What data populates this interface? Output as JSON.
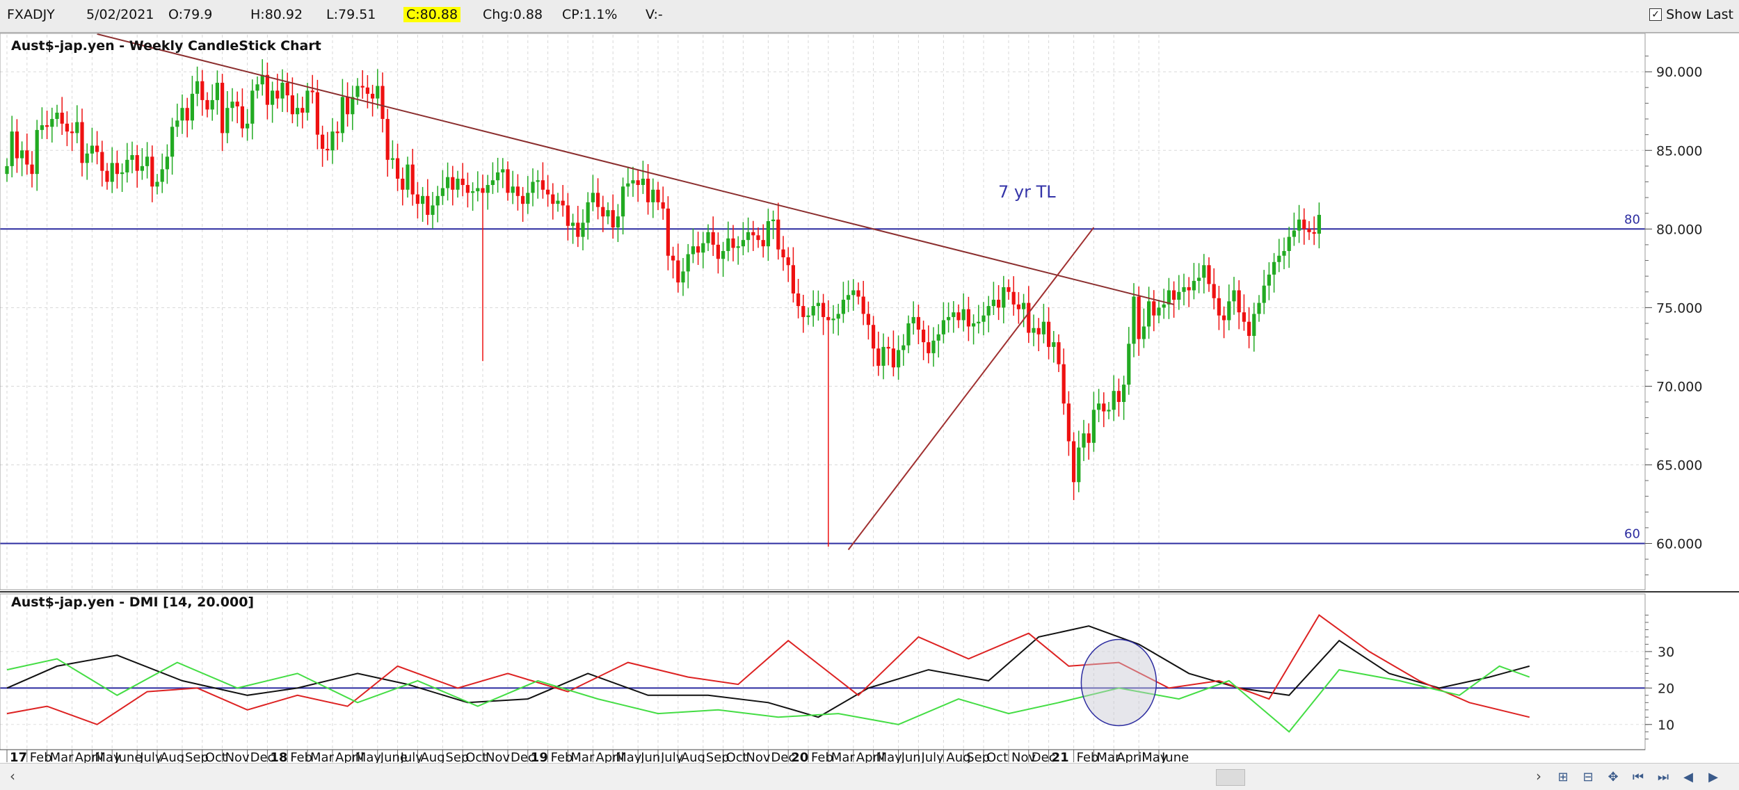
{
  "topbar": {
    "symbol": "FXADJY",
    "date": "5/02/2021",
    "open": "O:79.9",
    "high": "H:80.92",
    "low": "L:79.51",
    "close": "C:80.88",
    "change": "Chg:0.88",
    "change_pct": "CP:1.1%",
    "volume": "V:-",
    "show_last_label": "Show Last",
    "show_last_checked": true,
    "close_highlight_color": "#ffff00"
  },
  "chart_data": [
    {
      "type": "candlestick",
      "title": "Aust$-jap.yen - Weekly CandleStick Chart",
      "ylim": [
        57.5,
        92
      ],
      "yticks": [
        "90.000",
        "85.000",
        "80.000",
        "75.000",
        "70.000",
        "65.000",
        "60.000"
      ],
      "ytick_values": [
        90,
        85,
        80,
        75,
        70,
        65,
        60
      ],
      "grid": true,
      "up_color": "#22aa22",
      "down_color": "#ee1111",
      "horizontal_lines": [
        {
          "label": "80",
          "value": 80,
          "color": "#2c2ca0"
        },
        {
          "label": "60",
          "value": 60,
          "color": "#2c2ca0"
        }
      ],
      "trendlines": [
        {
          "label": "7 yr TL",
          "start": {
            "week": 18,
            "value": 92.4
          },
          "end": {
            "week": 233,
            "value": 75.2
          },
          "color": "#8b2e2e"
        },
        {
          "label": "",
          "start": {
            "week": 168,
            "value": 59.6
          },
          "end": {
            "week": 217,
            "value": 80.1
          },
          "color": "#a03030"
        }
      ],
      "start_week_index": 0,
      "closes": [
        84.0,
        86.2,
        84.5,
        85.0,
        84.1,
        83.5,
        86.3,
        86.6,
        86.5,
        87.0,
        87.4,
        86.7,
        86.2,
        86.1,
        86.8,
        84.2,
        84.8,
        85.3,
        84.9,
        83.7,
        83.0,
        84.2,
        83.5,
        83.6,
        84.4,
        84.7,
        83.7,
        84.0,
        84.6,
        82.7,
        83.0,
        83.8,
        84.6,
        86.5,
        86.9,
        87.7,
        86.9,
        88.6,
        89.4,
        88.2,
        87.6,
        88.2,
        89.3,
        86.1,
        87.7,
        88.1,
        87.8,
        86.4,
        86.7,
        88.8,
        89.2,
        89.8,
        87.9,
        88.8,
        88.3,
        89.3,
        88.5,
        87.3,
        87.7,
        87.4,
        88.8,
        88.7,
        86.0,
        85.1,
        85.0,
        86.2,
        86.1,
        88.4,
        87.3,
        88.4,
        89.1,
        89.0,
        88.6,
        88.3,
        89.1,
        87.0,
        84.4,
        84.5,
        83.2,
        82.5,
        84.1,
        82.2,
        81.6,
        82.1,
        80.9,
        81.5,
        82.1,
        82.6,
        83.3,
        82.5,
        83.2,
        82.8,
        82.3,
        82.4,
        82.6,
        82.3,
        82.8,
        83.1,
        83.6,
        83.8,
        82.3,
        82.7,
        82.1,
        81.6,
        82.3,
        83.0,
        83.1,
        82.5,
        82.2,
        81.6,
        81.8,
        81.5,
        80.2,
        80.4,
        79.5,
        80.4,
        81.7,
        82.3,
        81.4,
        80.8,
        81.2,
        80.1,
        80.8,
        82.7,
        82.9,
        83.1,
        82.8,
        83.2,
        81.7,
        82.5,
        81.7,
        81.3,
        78.3,
        78.0,
        76.6,
        77.3,
        78.4,
        78.9,
        78.5,
        79.1,
        79.8,
        79.0,
        78.1,
        78.6,
        79.4,
        78.8,
        78.9,
        79.3,
        79.8,
        79.6,
        79.3,
        78.9,
        80.5,
        80.6,
        78.7,
        78.2,
        77.7,
        75.9,
        75.1,
        74.4,
        74.5,
        75.1,
        75.3,
        74.4,
        74.2,
        74.3,
        74.6,
        75.5,
        75.8,
        76.1,
        75.7,
        74.6,
        73.9,
        72.4,
        71.3,
        72.5,
        72.4,
        71.2,
        72.3,
        72.6,
        74.0,
        74.4,
        73.6,
        72.8,
        72.1,
        72.9,
        73.3,
        74.2,
        74.4,
        74.7,
        74.2,
        74.9,
        73.8,
        74.0,
        74.1,
        74.5,
        75.1,
        75.5,
        75.0,
        76.3,
        76.0,
        75.2,
        74.9,
        75.3,
        73.4,
        73.7,
        73.3,
        74.1,
        72.5,
        72.8,
        71.4,
        68.9,
        66.5,
        63.9,
        66.1,
        67.0,
        66.4,
        68.5,
        68.9,
        68.4,
        68.5,
        69.7,
        69.0,
        70.1,
        72.7,
        75.7,
        73.0,
        73.8,
        75.4,
        74.5,
        75.0,
        75.2,
        76.1,
        75.5,
        76.0,
        76.3,
        76.1,
        76.7,
        76.9,
        77.7,
        76.5,
        75.6,
        74.5,
        74.2,
        75.4,
        76.1,
        74.7,
        74.1,
        73.2,
        74.6,
        75.3,
        76.4,
        77.1,
        77.9,
        78.3,
        78.6,
        79.5,
        79.9,
        80.6,
        80.0,
        79.8,
        79.7,
        80.9
      ],
      "note_weeks": "each candle = one week starting first week of Jan 2017"
    },
    {
      "type": "line",
      "title": "Aust$-jap.yen - DMI [14, 20.000]",
      "ylim": [
        5,
        42
      ],
      "yticks": [
        "30",
        "20",
        "10"
      ],
      "ytick_values": [
        30,
        20,
        10
      ],
      "horizontal_lines": [
        {
          "value": 20,
          "color": "#2c2ca0"
        }
      ],
      "highlight_circle": {
        "center_week": 222,
        "center_value": 21.5,
        "color": "#2c2ca0"
      },
      "series": [
        {
          "name": "",
          "color": "#111111",
          "values_by_week": [
            [
              0,
              20
            ],
            [
              10,
              26
            ],
            [
              22,
              29
            ],
            [
              35,
              22
            ],
            [
              48,
              18
            ],
            [
              58,
              20
            ],
            [
              70,
              24
            ],
            [
              80,
              21
            ],
            [
              92,
              16
            ],
            [
              104,
              17
            ],
            [
              116,
              24
            ],
            [
              128,
              18
            ],
            [
              140,
              18
            ],
            [
              152,
              16
            ],
            [
              162,
              12
            ],
            [
              172,
              20
            ],
            [
              184,
              25
            ],
            [
              196,
              22
            ],
            [
              206,
              34
            ],
            [
              216,
              37
            ],
            [
              226,
              32
            ],
            [
              236,
              24
            ],
            [
              246,
              20
            ],
            [
              256,
              18
            ],
            [
              266,
              33
            ],
            [
              276,
              24
            ],
            [
              286,
              20
            ],
            [
              296,
              23
            ],
            [
              304,
              26
            ]
          ]
        },
        {
          "name": "",
          "color": "#dd2222",
          "values_by_week": [
            [
              0,
              13
            ],
            [
              8,
              15
            ],
            [
              18,
              10
            ],
            [
              28,
              19
            ],
            [
              38,
              20
            ],
            [
              48,
              14
            ],
            [
              58,
              18
            ],
            [
              68,
              15
            ],
            [
              78,
              26
            ],
            [
              90,
              20
            ],
            [
              100,
              24
            ],
            [
              112,
              19
            ],
            [
              124,
              27
            ],
            [
              136,
              23
            ],
            [
              146,
              21
            ],
            [
              156,
              33
            ],
            [
              170,
              18
            ],
            [
              182,
              34
            ],
            [
              192,
              28
            ],
            [
              204,
              35
            ],
            [
              212,
              26
            ],
            [
              222,
              27
            ],
            [
              232,
              20
            ],
            [
              242,
              22
            ],
            [
              252,
              17
            ],
            [
              262,
              40
            ],
            [
              272,
              30
            ],
            [
              282,
              22
            ],
            [
              292,
              16
            ],
            [
              304,
              12
            ]
          ]
        },
        {
          "name": "",
          "color": "#44dd44",
          "values_by_week": [
            [
              0,
              25
            ],
            [
              10,
              28
            ],
            [
              22,
              18
            ],
            [
              34,
              27
            ],
            [
              46,
              20
            ],
            [
              58,
              24
            ],
            [
              70,
              16
            ],
            [
              82,
              22
            ],
            [
              94,
              15
            ],
            [
              106,
              22
            ],
            [
              118,
              17
            ],
            [
              130,
              13
            ],
            [
              142,
              14
            ],
            [
              154,
              12
            ],
            [
              166,
              13
            ],
            [
              178,
              10
            ],
            [
              190,
              17
            ],
            [
              200,
              13
            ],
            [
              210,
              16
            ],
            [
              222,
              20
            ],
            [
              234,
              17
            ],
            [
              244,
              22
            ],
            [
              256,
              8
            ],
            [
              266,
              25
            ],
            [
              278,
              22
            ],
            [
              290,
              18
            ],
            [
              298,
              26
            ],
            [
              304,
              23
            ]
          ]
        }
      ]
    }
  ],
  "xaxis": {
    "labels": [
      {
        "text": "17",
        "bold": true,
        "week": 0
      },
      {
        "text": "Feb",
        "week": 4
      },
      {
        "text": "Mar",
        "week": 8
      },
      {
        "text": "April",
        "week": 13
      },
      {
        "text": "May",
        "week": 17
      },
      {
        "text": "June",
        "week": 21
      },
      {
        "text": "July",
        "week": 26
      },
      {
        "text": "Aug",
        "week": 30
      },
      {
        "text": "Sep",
        "week": 35
      },
      {
        "text": "Oct",
        "week": 39
      },
      {
        "text": "Nov",
        "week": 43
      },
      {
        "text": "Dec",
        "week": 48
      },
      {
        "text": "18",
        "bold": true,
        "week": 52
      },
      {
        "text": "Feb",
        "week": 56
      },
      {
        "text": "Mar",
        "week": 60
      },
      {
        "text": "April",
        "week": 65
      },
      {
        "text": "May",
        "week": 69
      },
      {
        "text": "June",
        "week": 74
      },
      {
        "text": "July",
        "week": 78
      },
      {
        "text": "Aug",
        "week": 82
      },
      {
        "text": "Sep",
        "week": 87
      },
      {
        "text": "Oct",
        "week": 91
      },
      {
        "text": "Nov",
        "week": 95
      },
      {
        "text": "Dec",
        "week": 100
      },
      {
        "text": "19",
        "bold": true,
        "week": 104
      },
      {
        "text": "Feb",
        "week": 108
      },
      {
        "text": "Mar",
        "week": 112
      },
      {
        "text": "April",
        "week": 117
      },
      {
        "text": "May",
        "week": 121
      },
      {
        "text": "Jun",
        "week": 126
      },
      {
        "text": "July",
        "week": 130
      },
      {
        "text": "Aug",
        "week": 134
      },
      {
        "text": "Sep",
        "week": 139
      },
      {
        "text": "Oct",
        "week": 143
      },
      {
        "text": "Nov",
        "week": 147
      },
      {
        "text": "Dec",
        "week": 152
      },
      {
        "text": "20",
        "bold": true,
        "week": 156
      },
      {
        "text": "Feb",
        "week": 160
      },
      {
        "text": "Mar",
        "week": 164
      },
      {
        "text": "April",
        "week": 169
      },
      {
        "text": "May",
        "week": 173
      },
      {
        "text": "Jun",
        "week": 178
      },
      {
        "text": "July",
        "week": 182
      },
      {
        "text": "Aug",
        "week": 187
      },
      {
        "text": "Sep",
        "week": 191
      },
      {
        "text": "Oct",
        "week": 195
      },
      {
        "text": "Nov",
        "week": 200
      },
      {
        "text": "Dec",
        "week": 204
      },
      {
        "text": "21",
        "bold": true,
        "week": 208
      },
      {
        "text": "Feb",
        "week": 213
      },
      {
        "text": "Mar",
        "week": 217
      },
      {
        "text": "April",
        "week": 221
      },
      {
        "text": "May",
        "week": 226
      },
      {
        "text": "June",
        "week": 230
      }
    ]
  },
  "scrollbar": {
    "left_arrow": "‹",
    "right_arrow": "›",
    "nav_icons": [
      "zoom-in-icon",
      "zoom-out-icon",
      "pan-icon",
      "first-page-icon",
      "last-page-icon",
      "previous-icon",
      "next-icon"
    ],
    "nav_glyphs": [
      "⊞",
      "⊟",
      "✥",
      "⏮",
      "⏭",
      "◀",
      "▶"
    ]
  }
}
